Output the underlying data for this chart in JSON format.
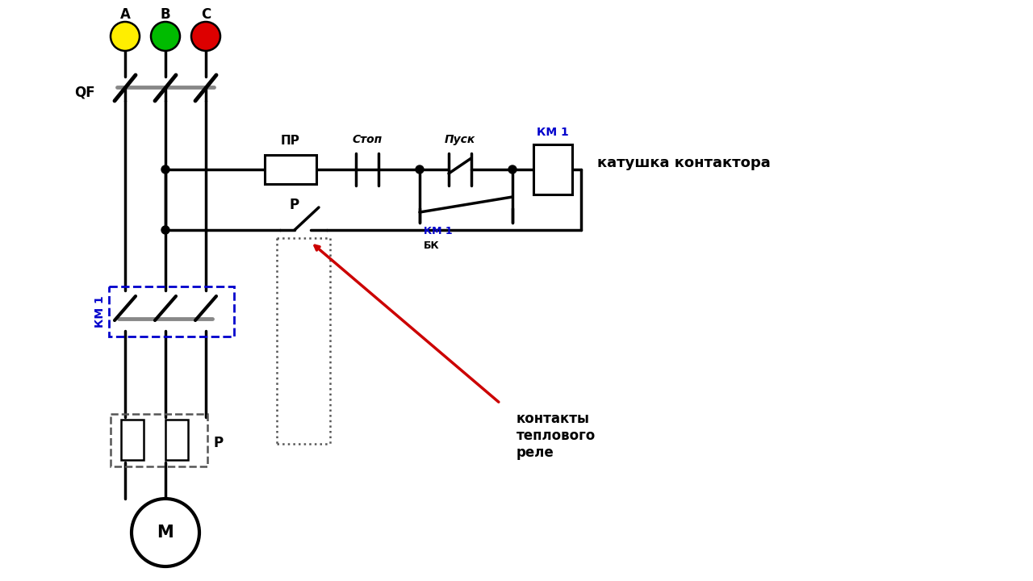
{
  "bg": "#ffffff",
  "lc": "#000000",
  "bc": "#0000cc",
  "rc": "#cc0000",
  "gc": "#888888",
  "dc": "#555555",
  "phase_colors": [
    "#ffee00",
    "#00bb00",
    "#dd0000"
  ],
  "phase_labels": [
    "A",
    "B",
    "C"
  ],
  "lw": 2.5,
  "lw_thick": 3.5,
  "label_qf": "QF",
  "label_pr": "ПР",
  "label_stop": "Стоп",
  "label_pusk": "Пуск",
  "label_km1": "КМ 1",
  "label_bk": "БК",
  "label_p": "Р",
  "label_katushka": "катушка контактора",
  "label_kontakty": "контакты\nтеплового\nреле",
  "label_m": "М"
}
